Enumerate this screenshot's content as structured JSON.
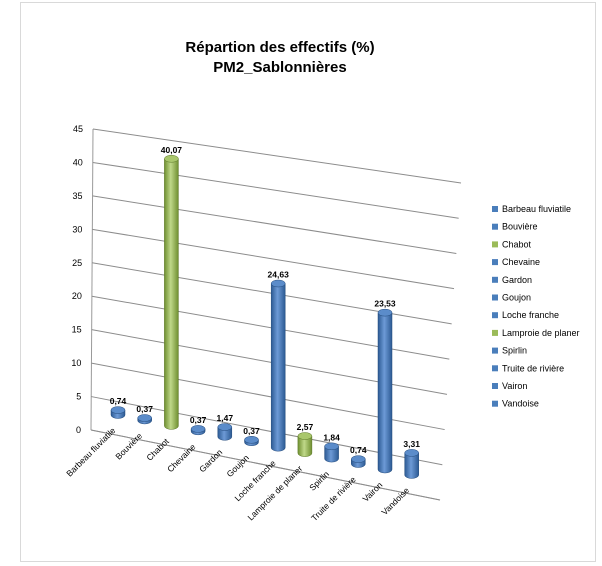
{
  "chart_data": {
    "type": "bar",
    "title_lines": [
      "Répartion des effectifs (%)",
      "PM2_Sablonnières"
    ],
    "ylim": [
      0,
      45
    ],
    "y_ticks": [
      "0",
      "5",
      "10",
      "15",
      "20",
      "25",
      "30",
      "35",
      "40",
      "45"
    ],
    "grid": true,
    "legend_position": "right",
    "categories": [
      "Barbeau fluviatile",
      "Bouvière",
      "Chabot",
      "Chevaine",
      "Gardon",
      "Goujon",
      "Loche franche",
      "Lamproie de planer",
      "Spirlin",
      "Truite de rivière",
      "Vairon",
      "Vandoise"
    ],
    "values": [
      0.74,
      0.37,
      40.07,
      0.37,
      1.47,
      0.37,
      24.63,
      2.57,
      1.84,
      0.74,
      23.53,
      3.31
    ],
    "value_labels": [
      "0,74",
      "0,37",
      "40,07",
      "0,37",
      "1,47",
      "0,37",
      "24,63",
      "2,57",
      "1,84",
      "0,74",
      "23,53",
      "3,31"
    ],
    "bar_colors": [
      "#4a7ebb",
      "#4a7ebb",
      "#9bbb59",
      "#4a7ebb",
      "#4a7ebb",
      "#4a7ebb",
      "#4a7ebb",
      "#9bbb59",
      "#4a7ebb",
      "#4a7ebb",
      "#4a7ebb",
      "#4a7ebb"
    ],
    "legend_entries": [
      "Barbeau fluviatile",
      "Bouvière",
      "Chabot",
      "Chevaine",
      "Gardon",
      "Goujon",
      "Loche franche",
      "Lamproie de planer",
      "Spirlin",
      "Truite de rivière",
      "Vairon",
      "Vandoise"
    ]
  }
}
